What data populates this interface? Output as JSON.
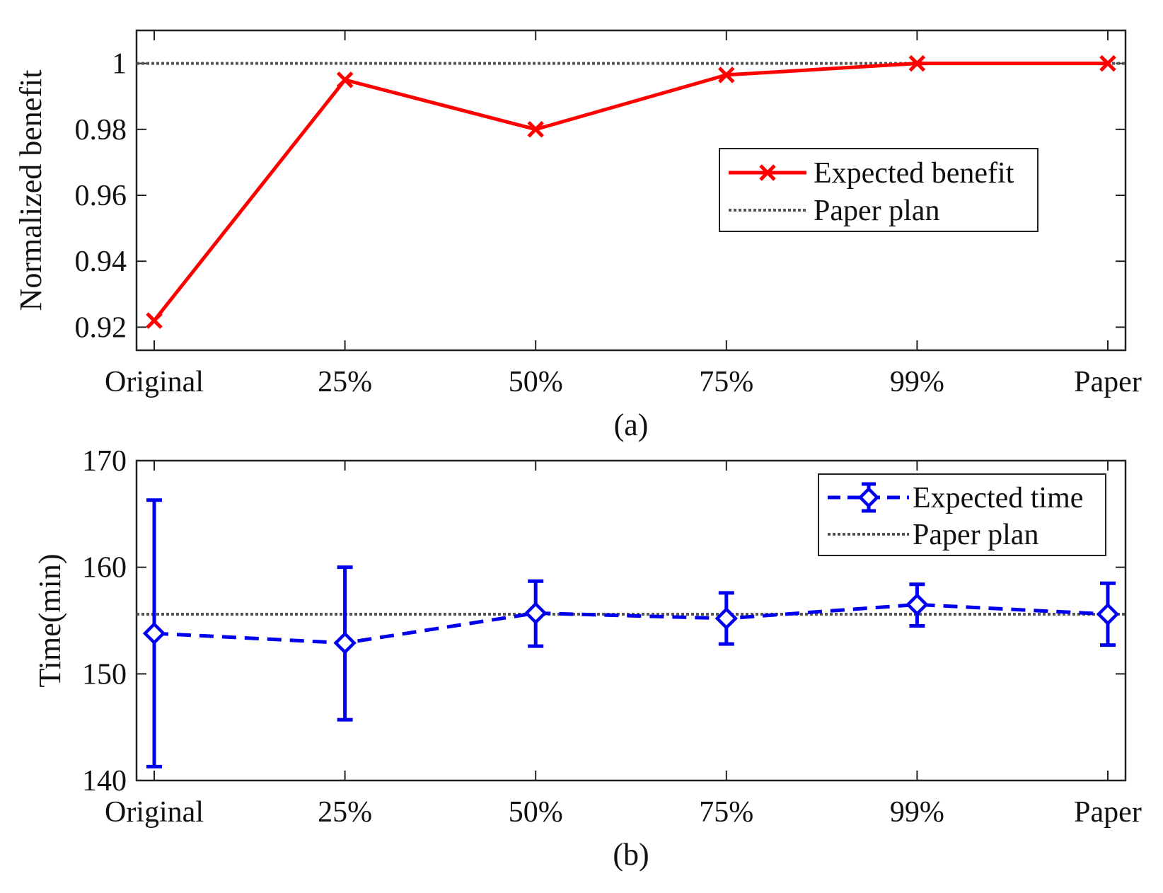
{
  "chart_data": [
    {
      "type": "line",
      "panel_caption": "(a)",
      "title": "",
      "xlabel": "",
      "ylabel": "Normalized benefit",
      "categories": [
        "Original",
        "25%",
        "50%",
        "75%",
        "99%",
        "Paper"
      ],
      "ylim": [
        0.913,
        1.01
      ],
      "yticks": [
        0.92,
        0.94,
        0.96,
        0.98,
        1
      ],
      "ytick_labels": [
        "0.92",
        "0.94",
        "0.96",
        "0.98",
        "1"
      ],
      "grid": false,
      "legend_position": "center-right",
      "series": [
        {
          "name": "Expected benefit",
          "style": "solid",
          "marker": "x",
          "color": "#ff0000",
          "values": [
            0.922,
            0.995,
            0.98,
            0.9965,
            1.0,
            1.0
          ]
        }
      ],
      "reference_lines": [
        {
          "name": "Paper plan",
          "style": "dotted",
          "color": "#555555",
          "value": 1.0
        }
      ]
    },
    {
      "type": "line",
      "panel_caption": "(b)",
      "title": "",
      "xlabel": "",
      "ylabel": "Time(min)",
      "categories": [
        "Original",
        "25%",
        "50%",
        "75%",
        "99%",
        "Paper"
      ],
      "ylim": [
        140,
        170
      ],
      "yticks": [
        140,
        150,
        160,
        170
      ],
      "ytick_labels": [
        "140",
        "150",
        "160",
        "170"
      ],
      "grid": false,
      "legend_position": "top-right",
      "series": [
        {
          "name": "Expected time",
          "style": "dashed",
          "marker": "diamond",
          "color": "#0000ee",
          "values": [
            153.8,
            152.9,
            155.7,
            155.2,
            156.5,
            155.6
          ],
          "error_low": [
            141.3,
            145.7,
            152.6,
            152.8,
            154.5,
            152.7
          ],
          "error_high": [
            166.3,
            160.0,
            158.7,
            157.6,
            158.4,
            158.5
          ]
        }
      ],
      "reference_lines": [
        {
          "name": "Paper plan",
          "style": "dotted",
          "color": "#555555",
          "value": 155.6
        }
      ]
    }
  ]
}
